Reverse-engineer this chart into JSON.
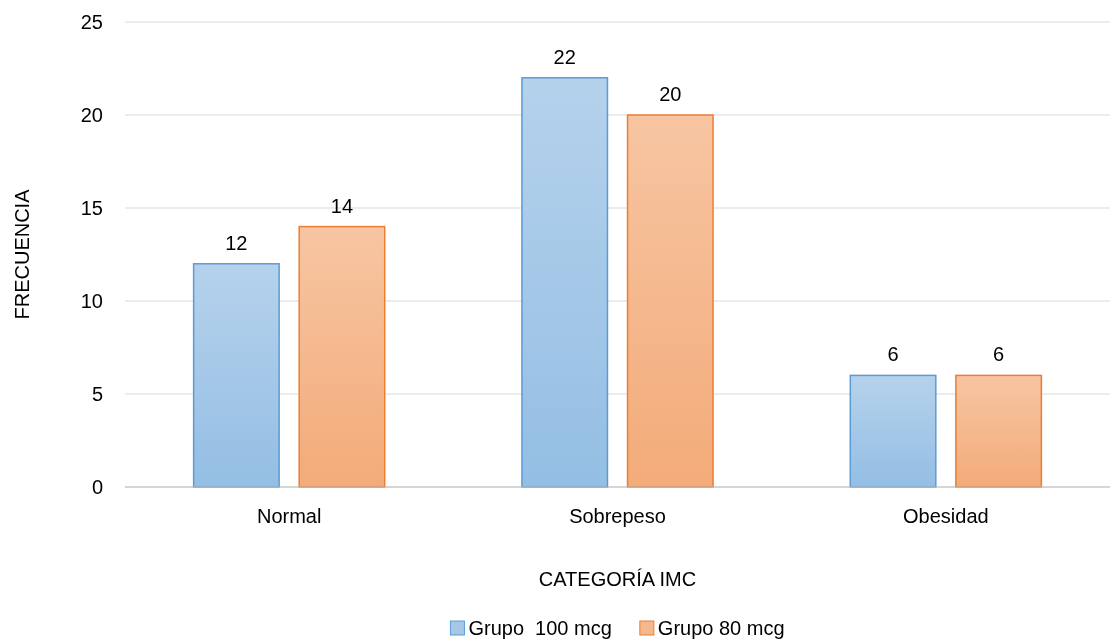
{
  "chart_data": {
    "type": "bar",
    "xlabel": "CATEGORÍA IMC",
    "ylabel": "FRECUENCIA",
    "categories": [
      "Normal",
      "Sobrepeso",
      "Obesidad"
    ],
    "series": [
      {
        "name": "Grupo  100 mcg",
        "color": "#5b9bd5",
        "values": [
          12,
          22,
          6
        ]
      },
      {
        "name": "Grupo 80 mcg",
        "color": "#ed7d31",
        "values": [
          14,
          20,
          6
        ]
      }
    ],
    "ylim": [
      0,
      25
    ],
    "yticks": [
      0,
      5,
      10,
      15,
      20,
      25
    ],
    "grid": "y",
    "legend": "bottom",
    "data_labels": true
  }
}
